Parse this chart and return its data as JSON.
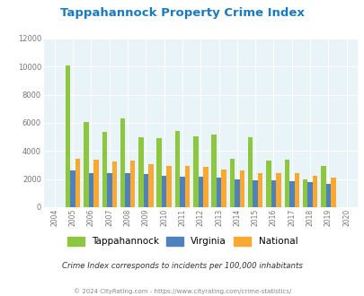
{
  "title": "Tappahannock Property Crime Index",
  "years": [
    2004,
    2005,
    2006,
    2007,
    2008,
    2009,
    2010,
    2011,
    2012,
    2013,
    2014,
    2015,
    2016,
    2017,
    2018,
    2019,
    2020
  ],
  "tappahannock": [
    0,
    10100,
    6050,
    5350,
    6300,
    5000,
    4900,
    5400,
    5050,
    5150,
    3450,
    4950,
    3300,
    3350,
    2000,
    2950,
    0
  ],
  "virginia": [
    0,
    2600,
    2450,
    2450,
    2450,
    2350,
    2250,
    2200,
    2150,
    2100,
    2000,
    1900,
    1900,
    1850,
    1800,
    1650,
    0
  ],
  "national": [
    0,
    3450,
    3350,
    3250,
    3300,
    3050,
    2950,
    2950,
    2900,
    2700,
    2600,
    2400,
    2450,
    2400,
    2250,
    2100,
    0
  ],
  "tappahannock_color": "#8dc63f",
  "virginia_color": "#4f81bd",
  "national_color": "#f9a832",
  "bg_color": "#e8f4f8",
  "ylim": [
    0,
    12000
  ],
  "yticks": [
    0,
    2000,
    4000,
    6000,
    8000,
    10000,
    12000
  ],
  "grid_color": "#ffffff",
  "subtitle": "Crime Index corresponds to incidents per 100,000 inhabitants",
  "footer": "© 2024 CityRating.com - https://www.cityrating.com/crime-statistics/",
  "title_color": "#1a7abf",
  "subtitle_color": "#333333",
  "footer_color": "#888888",
  "bar_width": 0.27
}
